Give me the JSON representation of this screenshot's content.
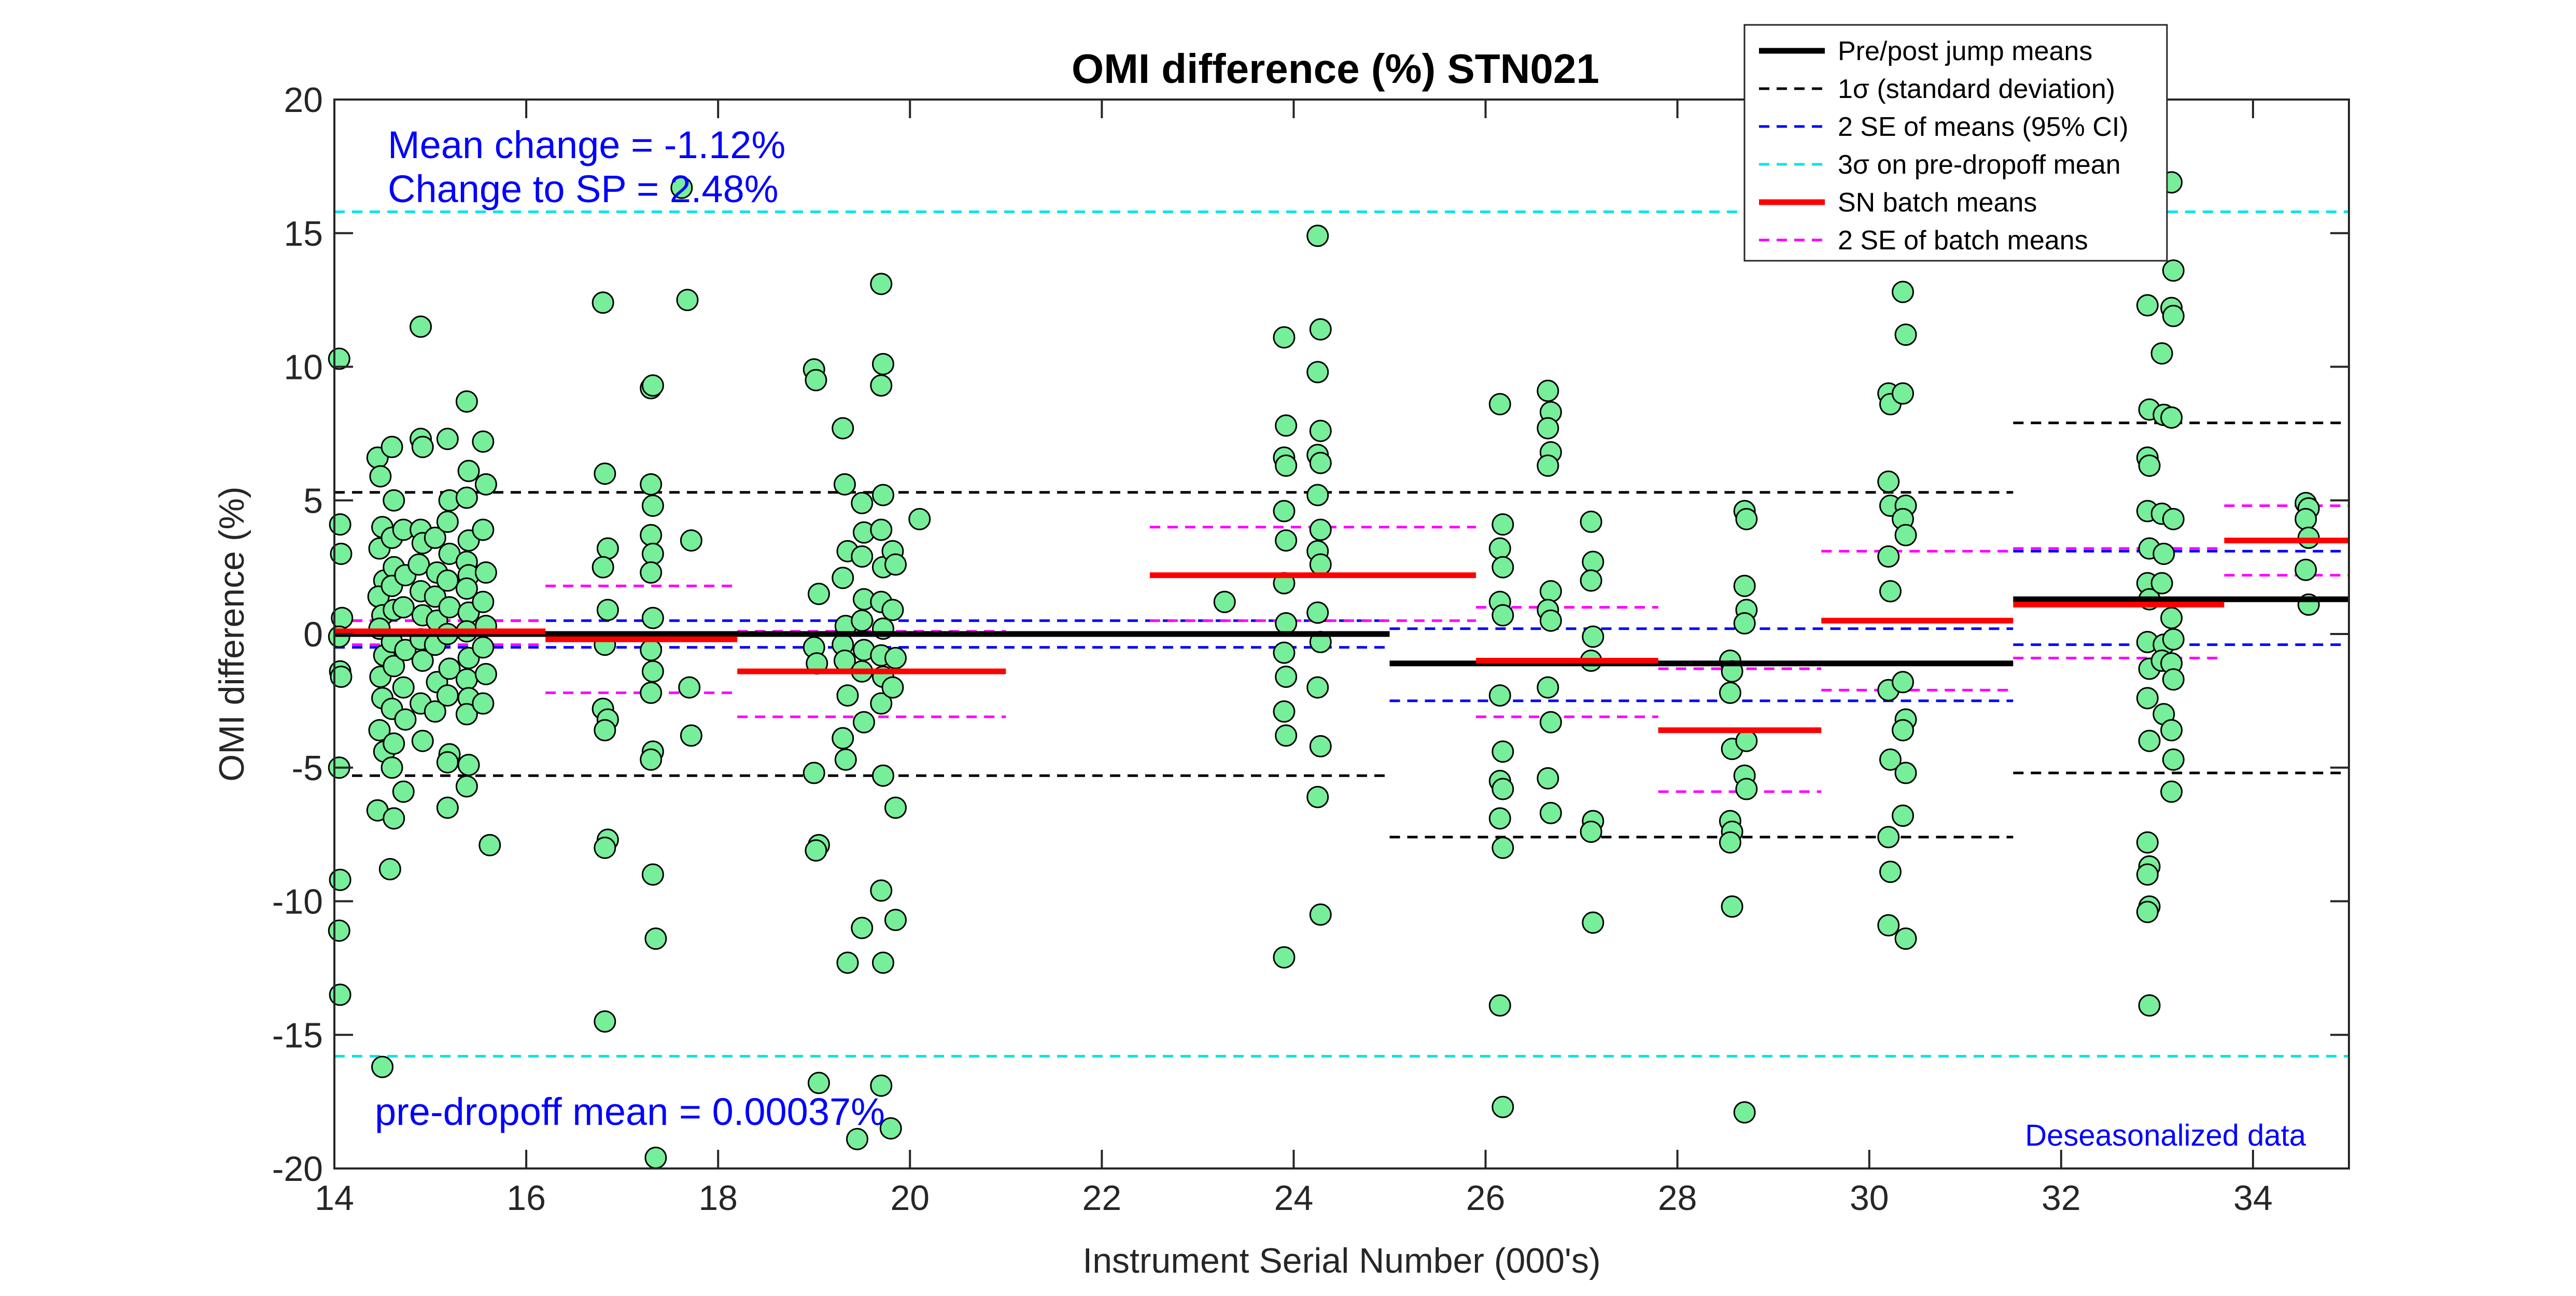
{
  "chart_data": {
    "type": "scatter",
    "title": "OMI difference (%)  STN021",
    "xlabel": "Instrument Serial Number (000's)",
    "ylabel": "OMI difference (%)",
    "xlim": [
      14,
      35
    ],
    "ylim": [
      -20,
      20
    ],
    "x_ticks": [
      14,
      16,
      18,
      20,
      22,
      24,
      26,
      28,
      30,
      32,
      34
    ],
    "y_ticks": [
      -20,
      -15,
      -10,
      -5,
      0,
      5,
      10,
      15,
      20
    ],
    "grid": false,
    "legend_position": "top-right",
    "annotations": {
      "mean_change": "Mean change = -1.12%",
      "change_to_sp": "Change to SP = 2.48%",
      "pre_dropoff": "pre-dropoff mean = 0.00037%",
      "deseasonalized": "Deseasonalized data"
    },
    "legend": [
      {
        "label": "Pre/post jump means",
        "color": "#000000",
        "style": "solid"
      },
      {
        "label": "1σ (standard deviation)",
        "color": "#000000",
        "style": "dashed"
      },
      {
        "label": "2 SE of means (95% CI)",
        "color": "#0000ff",
        "style": "dashed"
      },
      {
        "label": "3σ on pre-dropoff mean",
        "color": "#00e5e5",
        "style": "dashed"
      },
      {
        "label": "SN batch means",
        "color": "#ff0000",
        "style": "solid"
      },
      {
        "label": "2 SE of batch means",
        "color": "#ff00ff",
        "style": "dashed"
      }
    ],
    "colors": {
      "points": "#77ee99",
      "point_edge": "#000000",
      "black": "#000000",
      "blue": "#0000ff",
      "cyan": "#00e5e5",
      "red": "#ff0000",
      "magenta": "#ff00ff"
    },
    "jump_means": [
      {
        "x0": 14,
        "x1": 25,
        "mean": 0.0,
        "sd_upper": 5.3,
        "sd_lower": -5.3,
        "se_upper": 0.5,
        "se_lower": -0.5
      },
      {
        "x0": 25,
        "x1": 31.5,
        "mean": -1.1,
        "sd_upper": 5.3,
        "sd_lower": -7.6,
        "se_upper": 0.2,
        "se_lower": -2.5
      },
      {
        "x0": 31.5,
        "x1": 35,
        "mean": 1.3,
        "sd_upper": 7.9,
        "sd_lower": -5.2,
        "se_upper": 3.1,
        "se_lower": -0.4
      }
    ],
    "three_sigma": {
      "upper": 15.8,
      "lower": -15.8
    },
    "batch_means": [
      {
        "x0": 14,
        "x1": 16.2,
        "mean": 0.1,
        "se_upper": 0.5,
        "se_lower": -0.4
      },
      {
        "x0": 16.2,
        "x1": 18.2,
        "mean": -0.2,
        "se_upper": 1.8,
        "se_lower": -2.2
      },
      {
        "x0": 18.2,
        "x1": 21.0,
        "mean": -1.4,
        "se_upper": 0.1,
        "se_lower": -3.1
      },
      {
        "x0": 22.5,
        "x1": 25.9,
        "mean": 2.2,
        "se_upper": 4.0,
        "se_lower": 0.5
      },
      {
        "x0": 25.9,
        "x1": 27.8,
        "mean": -1.0,
        "se_upper": 1.0,
        "se_lower": -3.1
      },
      {
        "x0": 27.8,
        "x1": 29.5,
        "mean": -3.6,
        "se_upper": -1.3,
        "se_lower": -5.9
      },
      {
        "x0": 29.5,
        "x1": 31.5,
        "mean": 0.5,
        "se_upper": 3.1,
        "se_lower": -2.1
      },
      {
        "x0": 31.5,
        "x1": 33.7,
        "mean": 1.1,
        "se_upper": 3.2,
        "se_lower": -0.9
      },
      {
        "x0": 33.7,
        "x1": 35,
        "mean": 3.5,
        "se_upper": 4.8,
        "se_lower": 2.2
      }
    ],
    "points": [
      [
        14.05,
        10.3
      ],
      [
        14.06,
        4.1
      ],
      [
        14.07,
        3.0
      ],
      [
        14.08,
        0.6
      ],
      [
        14.05,
        -0.1
      ],
      [
        14.06,
        -1.4
      ],
      [
        14.07,
        -1.6
      ],
      [
        14.05,
        -5.0
      ],
      [
        14.06,
        -9.2
      ],
      [
        14.05,
        -11.1
      ],
      [
        14.06,
        -13.5
      ],
      [
        14.45,
        6.6
      ],
      [
        14.48,
        5.9
      ],
      [
        14.5,
        4.0
      ],
      [
        14.47,
        3.2
      ],
      [
        14.52,
        2.0
      ],
      [
        14.46,
        1.4
      ],
      [
        14.5,
        0.7
      ],
      [
        14.47,
        0.2
      ],
      [
        14.52,
        -0.8
      ],
      [
        14.48,
        -1.6
      ],
      [
        14.5,
        -2.4
      ],
      [
        14.47,
        -3.6
      ],
      [
        14.52,
        -4.4
      ],
      [
        14.45,
        -6.6
      ],
      [
        14.5,
        -16.2
      ],
      [
        14.6,
        7.0
      ],
      [
        14.62,
        5.0
      ],
      [
        14.6,
        3.6
      ],
      [
        14.62,
        2.5
      ],
      [
        14.6,
        1.8
      ],
      [
        14.62,
        0.9
      ],
      [
        14.6,
        -0.3
      ],
      [
        14.62,
        -1.2
      ],
      [
        14.6,
        -2.8
      ],
      [
        14.62,
        -4.1
      ],
      [
        14.6,
        -5.0
      ],
      [
        14.62,
        -6.9
      ],
      [
        14.58,
        -8.8
      ],
      [
        14.72,
        3.9
      ],
      [
        14.74,
        2.2
      ],
      [
        14.72,
        1.0
      ],
      [
        14.74,
        -0.6
      ],
      [
        14.72,
        -2.0
      ],
      [
        14.74,
        -3.2
      ],
      [
        14.72,
        -5.9
      ],
      [
        14.9,
        11.5
      ],
      [
        14.9,
        7.3
      ],
      [
        14.92,
        7.0
      ],
      [
        14.9,
        3.9
      ],
      [
        14.92,
        3.4
      ],
      [
        14.88,
        2.6
      ],
      [
        14.9,
        1.6
      ],
      [
        14.92,
        0.7
      ],
      [
        14.9,
        -0.2
      ],
      [
        14.92,
        -1.0
      ],
      [
        14.9,
        -2.6
      ],
      [
        14.92,
        -4.0
      ],
      [
        15.05,
        3.6
      ],
      [
        15.07,
        2.3
      ],
      [
        15.05,
        1.4
      ],
      [
        15.07,
        0.5
      ],
      [
        15.05,
        -0.4
      ],
      [
        15.07,
        -1.8
      ],
      [
        15.05,
        -2.9
      ],
      [
        15.18,
        7.3
      ],
      [
        15.2,
        5.0
      ],
      [
        15.18,
        4.2
      ],
      [
        15.2,
        3.0
      ],
      [
        15.18,
        2.0
      ],
      [
        15.2,
        1.0
      ],
      [
        15.18,
        0.0
      ],
      [
        15.2,
        -1.3
      ],
      [
        15.18,
        -2.3
      ],
      [
        15.2,
        -4.5
      ],
      [
        15.18,
        -4.8
      ],
      [
        15.18,
        -6.5
      ],
      [
        15.38,
        8.7
      ],
      [
        15.4,
        6.1
      ],
      [
        15.38,
        5.1
      ],
      [
        15.4,
        3.5
      ],
      [
        15.38,
        2.7
      ],
      [
        15.4,
        2.2
      ],
      [
        15.38,
        1.7
      ],
      [
        15.4,
        0.8
      ],
      [
        15.38,
        0.1
      ],
      [
        15.4,
        -0.9
      ],
      [
        15.38,
        -1.7
      ],
      [
        15.4,
        -2.4
      ],
      [
        15.38,
        -3.0
      ],
      [
        15.4,
        -4.9
      ],
      [
        15.38,
        -5.7
      ],
      [
        15.55,
        7.2
      ],
      [
        15.58,
        5.6
      ],
      [
        15.55,
        3.9
      ],
      [
        15.58,
        2.3
      ],
      [
        15.55,
        1.2
      ],
      [
        15.58,
        0.3
      ],
      [
        15.55,
        -0.5
      ],
      [
        15.58,
        -1.5
      ],
      [
        15.55,
        -2.6
      ],
      [
        15.62,
        -7.9
      ],
      [
        16.8,
        12.4
      ],
      [
        16.82,
        6.0
      ],
      [
        16.85,
        3.2
      ],
      [
        16.8,
        2.5
      ],
      [
        16.85,
        0.9
      ],
      [
        16.82,
        -0.4
      ],
      [
        16.8,
        -2.8
      ],
      [
        16.85,
        -3.2
      ],
      [
        16.82,
        -3.6
      ],
      [
        16.85,
        -7.7
      ],
      [
        16.82,
        -8.0
      ],
      [
        16.82,
        -14.5
      ],
      [
        17.3,
        9.2
      ],
      [
        17.32,
        9.3
      ],
      [
        17.3,
        5.6
      ],
      [
        17.32,
        4.8
      ],
      [
        17.3,
        3.7
      ],
      [
        17.32,
        3.0
      ],
      [
        17.3,
        2.3
      ],
      [
        17.32,
        0.6
      ],
      [
        17.3,
        -0.6
      ],
      [
        17.32,
        -1.4
      ],
      [
        17.3,
        -2.2
      ],
      [
        17.32,
        -4.4
      ],
      [
        17.3,
        -4.7
      ],
      [
        17.32,
        -9.0
      ],
      [
        17.35,
        -11.4
      ],
      [
        17.35,
        -19.6
      ],
      [
        17.62,
        16.7
      ],
      [
        17.68,
        12.5
      ],
      [
        17.72,
        3.5
      ],
      [
        17.7,
        -2.0
      ],
      [
        17.72,
        -3.8
      ],
      [
        19.0,
        9.9
      ],
      [
        19.02,
        9.5
      ],
      [
        19.05,
        1.5
      ],
      [
        19.0,
        -0.5
      ],
      [
        19.03,
        -1.1
      ],
      [
        19.0,
        -5.2
      ],
      [
        19.05,
        -7.9
      ],
      [
        19.02,
        -8.1
      ],
      [
        19.05,
        -16.8
      ],
      [
        19.3,
        7.7
      ],
      [
        19.32,
        5.6
      ],
      [
        19.35,
        3.1
      ],
      [
        19.3,
        2.1
      ],
      [
        19.33,
        0.3
      ],
      [
        19.3,
        -0.4
      ],
      [
        19.32,
        -1.0
      ],
      [
        19.35,
        -2.3
      ],
      [
        19.3,
        -3.9
      ],
      [
        19.33,
        -4.7
      ],
      [
        19.35,
        -12.3
      ],
      [
        19.5,
        4.9
      ],
      [
        19.52,
        3.8
      ],
      [
        19.5,
        2.9
      ],
      [
        19.52,
        1.3
      ],
      [
        19.5,
        0.5
      ],
      [
        19.52,
        -0.6
      ],
      [
        19.5,
        -1.4
      ],
      [
        19.52,
        -3.3
      ],
      [
        19.5,
        -11.0
      ],
      [
        19.45,
        -18.9
      ],
      [
        19.7,
        13.1
      ],
      [
        19.72,
        10.1
      ],
      [
        19.7,
        9.3
      ],
      [
        19.72,
        5.2
      ],
      [
        19.7,
        3.9
      ],
      [
        19.72,
        2.5
      ],
      [
        19.7,
        1.2
      ],
      [
        19.72,
        0.2
      ],
      [
        19.7,
        -0.8
      ],
      [
        19.72,
        -1.6
      ],
      [
        19.7,
        -2.6
      ],
      [
        19.72,
        -5.3
      ],
      [
        19.7,
        -9.6
      ],
      [
        19.72,
        -12.3
      ],
      [
        19.7,
        -16.9
      ],
      [
        19.82,
        3.1
      ],
      [
        19.85,
        2.6
      ],
      [
        19.82,
        0.9
      ],
      [
        19.85,
        -0.9
      ],
      [
        19.82,
        -2.0
      ],
      [
        19.85,
        -6.5
      ],
      [
        19.85,
        -10.7
      ],
      [
        19.8,
        -18.5
      ],
      [
        20.1,
        4.3
      ],
      [
        23.28,
        1.2
      ],
      [
        23.9,
        11.1
      ],
      [
        23.92,
        7.8
      ],
      [
        23.9,
        6.6
      ],
      [
        23.92,
        6.3
      ],
      [
        23.9,
        4.6
      ],
      [
        23.92,
        3.5
      ],
      [
        23.9,
        1.9
      ],
      [
        23.92,
        0.4
      ],
      [
        23.9,
        -0.7
      ],
      [
        23.92,
        -1.6
      ],
      [
        23.9,
        -2.9
      ],
      [
        23.92,
        -3.8
      ],
      [
        23.9,
        -12.1
      ],
      [
        24.25,
        14.9
      ],
      [
        24.28,
        11.4
      ],
      [
        24.25,
        9.8
      ],
      [
        24.28,
        7.6
      ],
      [
        24.25,
        6.7
      ],
      [
        24.28,
        6.4
      ],
      [
        24.25,
        5.2
      ],
      [
        24.28,
        3.9
      ],
      [
        24.25,
        3.1
      ],
      [
        24.28,
        2.6
      ],
      [
        24.25,
        0.8
      ],
      [
        24.28,
        -0.3
      ],
      [
        24.25,
        -2.0
      ],
      [
        24.28,
        -4.2
      ],
      [
        24.25,
        -6.1
      ],
      [
        24.28,
        -10.5
      ],
      [
        26.15,
        8.6
      ],
      [
        26.18,
        4.1
      ],
      [
        26.15,
        3.2
      ],
      [
        26.18,
        2.5
      ],
      [
        26.15,
        1.2
      ],
      [
        26.18,
        0.7
      ],
      [
        26.15,
        -2.3
      ],
      [
        26.18,
        -4.4
      ],
      [
        26.15,
        -5.5
      ],
      [
        26.18,
        -5.8
      ],
      [
        26.15,
        -6.9
      ],
      [
        26.18,
        -8.0
      ],
      [
        26.15,
        -13.9
      ],
      [
        26.18,
        -17.7
      ],
      [
        26.65,
        9.1
      ],
      [
        26.68,
        8.3
      ],
      [
        26.65,
        7.7
      ],
      [
        26.68,
        6.8
      ],
      [
        26.65,
        6.3
      ],
      [
        26.68,
        1.6
      ],
      [
        26.65,
        0.9
      ],
      [
        26.68,
        0.5
      ],
      [
        26.65,
        -2.0
      ],
      [
        26.68,
        -3.3
      ],
      [
        26.65,
        -5.4
      ],
      [
        26.68,
        -6.7
      ],
      [
        27.1,
        4.2
      ],
      [
        27.12,
        2.7
      ],
      [
        27.1,
        2.0
      ],
      [
        27.12,
        -0.1
      ],
      [
        27.1,
        -1.0
      ],
      [
        27.12,
        -7.0
      ],
      [
        27.1,
        -7.4
      ],
      [
        27.12,
        -10.8
      ],
      [
        28.55,
        -1.0
      ],
      [
        28.57,
        -1.4
      ],
      [
        28.55,
        -2.2
      ],
      [
        28.57,
        -4.3
      ],
      [
        28.55,
        -7.0
      ],
      [
        28.57,
        -7.4
      ],
      [
        28.55,
        -7.8
      ],
      [
        28.57,
        -10.2
      ],
      [
        28.7,
        4.6
      ],
      [
        28.72,
        4.3
      ],
      [
        28.7,
        1.8
      ],
      [
        28.72,
        0.9
      ],
      [
        28.7,
        0.4
      ],
      [
        28.72,
        -4.0
      ],
      [
        28.7,
        -5.3
      ],
      [
        28.72,
        -5.8
      ],
      [
        28.7,
        -17.9
      ],
      [
        30.2,
        9.0
      ],
      [
        30.22,
        8.6
      ],
      [
        30.2,
        5.7
      ],
      [
        30.22,
        4.8
      ],
      [
        30.2,
        2.9
      ],
      [
        30.22,
        1.6
      ],
      [
        30.2,
        -2.1
      ],
      [
        30.22,
        -4.7
      ],
      [
        30.2,
        -7.6
      ],
      [
        30.22,
        -8.9
      ],
      [
        30.2,
        -10.9
      ],
      [
        30.35,
        12.8
      ],
      [
        30.38,
        11.2
      ],
      [
        30.35,
        9.0
      ],
      [
        30.38,
        4.8
      ],
      [
        30.35,
        4.3
      ],
      [
        30.38,
        3.7
      ],
      [
        30.35,
        -1.8
      ],
      [
        30.38,
        -3.2
      ],
      [
        30.35,
        -3.6
      ],
      [
        30.38,
        -5.2
      ],
      [
        30.35,
        -6.8
      ],
      [
        30.38,
        -11.4
      ],
      [
        32.9,
        12.3
      ],
      [
        32.92,
        8.4
      ],
      [
        32.9,
        6.6
      ],
      [
        32.92,
        6.3
      ],
      [
        32.9,
        4.6
      ],
      [
        32.92,
        3.2
      ],
      [
        32.9,
        1.9
      ],
      [
        32.92,
        1.3
      ],
      [
        32.9,
        -0.3
      ],
      [
        32.92,
        -1.3
      ],
      [
        32.9,
        -2.4
      ],
      [
        32.92,
        -4.0
      ],
      [
        32.9,
        -7.8
      ],
      [
        32.92,
        -8.7
      ],
      [
        32.9,
        -9.0
      ],
      [
        32.92,
        -10.2
      ],
      [
        32.9,
        -10.4
      ],
      [
        32.92,
        -13.9
      ],
      [
        33.05,
        10.5
      ],
      [
        33.07,
        8.2
      ],
      [
        33.05,
        4.5
      ],
      [
        33.07,
        3.0
      ],
      [
        33.05,
        1.9
      ],
      [
        33.07,
        -0.4
      ],
      [
        33.05,
        -1.0
      ],
      [
        33.07,
        -3.0
      ],
      [
        33.15,
        16.9
      ],
      [
        33.17,
        13.6
      ],
      [
        33.15,
        12.2
      ],
      [
        33.17,
        11.9
      ],
      [
        33.15,
        8.1
      ],
      [
        33.17,
        4.3
      ],
      [
        33.15,
        0.6
      ],
      [
        33.17,
        -0.2
      ],
      [
        33.15,
        -1.1
      ],
      [
        33.17,
        -1.7
      ],
      [
        33.15,
        -3.6
      ],
      [
        33.17,
        -4.7
      ],
      [
        33.15,
        -5.9
      ],
      [
        34.55,
        4.9
      ],
      [
        34.58,
        4.7
      ],
      [
        34.55,
        4.3
      ],
      [
        34.58,
        3.6
      ],
      [
        34.55,
        2.4
      ],
      [
        34.58,
        1.1
      ]
    ]
  }
}
